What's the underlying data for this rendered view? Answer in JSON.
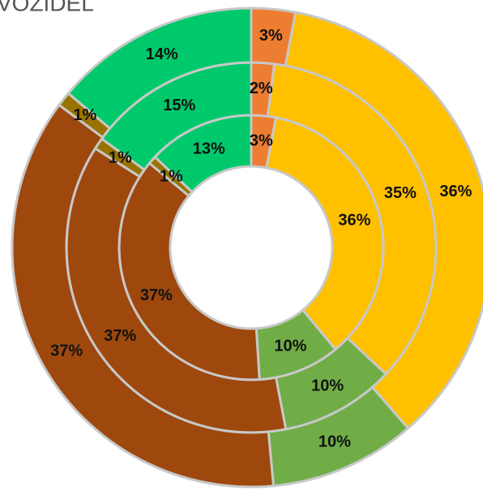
{
  "chart_data": {
    "type": "donut",
    "title": "VOZIDEL",
    "colors": [
      "#ed7d31",
      "#ffc000",
      "#70ad47",
      "#9e480e",
      "#997300",
      "#00c96b"
    ],
    "series": [
      {
        "values": [
          3,
          36,
          10,
          37,
          1,
          13
        ],
        "value_labels": [
          "3%",
          "36%",
          "10%",
          "37%",
          "1%",
          "13%"
        ]
      },
      {
        "values": [
          2,
          35,
          10,
          37,
          1,
          15
        ],
        "value_labels": [
          "2%",
          "35%",
          "10%",
          "37%",
          "1%",
          "15%"
        ]
      },
      {
        "values": [
          3,
          36,
          10,
          37,
          1,
          14
        ],
        "value_labels": [
          "3%",
          "36%",
          "10%",
          "37%",
          "1%",
          "14%"
        ]
      }
    ]
  }
}
